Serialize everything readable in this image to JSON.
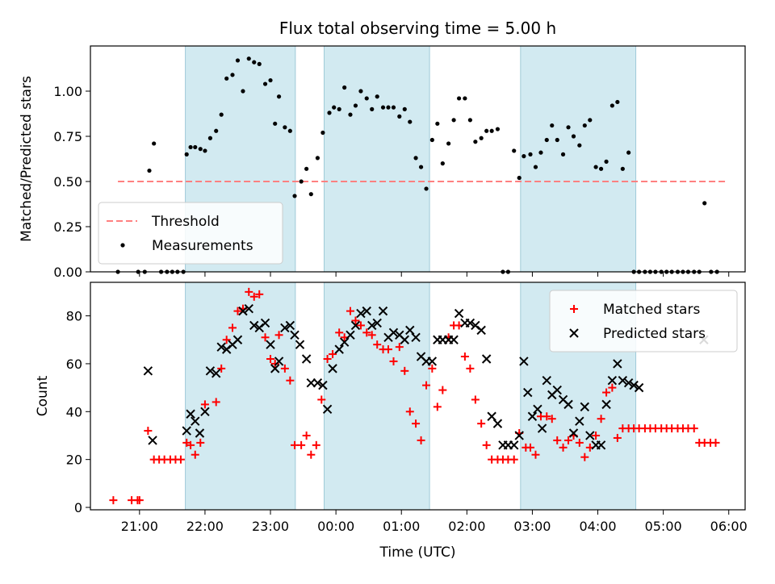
{
  "chart_data": [
    {
      "type": "scatter",
      "title": "Flux total observing time = 5.00 h",
      "ylabel": "Matched/Predicted stars",
      "xlabel": "",
      "x_unit": "hours UTC (continuous past midnight)",
      "xlim": [
        20.25,
        30.25
      ],
      "ylim": [
        0,
        1.25
      ],
      "yticks": [
        "0.00",
        "0.25",
        "0.50",
        "0.75",
        "1.00"
      ],
      "legend_position": "lower-left",
      "shaded_windows": [
        [
          21.7,
          23.38
        ],
        [
          23.82,
          25.43
        ],
        [
          26.82,
          28.58
        ]
      ],
      "shade_color": "#add8e6",
      "threshold": {
        "name": "Threshold",
        "value": 0.5,
        "x_range": [
          20.67,
          29.97
        ],
        "color": "#ff8080"
      },
      "series": [
        {
          "name": "Measurements",
          "marker": "dot",
          "color": "#000000",
          "x": [
            20.67,
            20.98,
            21.08,
            21.15,
            21.22,
            21.33,
            21.42,
            21.5,
            21.58,
            21.67,
            21.72,
            21.78,
            21.85,
            21.93,
            22.0,
            22.08,
            22.17,
            22.25,
            22.33,
            22.42,
            22.5,
            22.58,
            22.67,
            22.75,
            22.83,
            22.92,
            23.0,
            23.07,
            23.13,
            23.22,
            23.3,
            23.37,
            23.47,
            23.55,
            23.62,
            23.72,
            23.8,
            23.9,
            23.97,
            24.05,
            24.13,
            24.22,
            24.3,
            24.38,
            24.47,
            24.55,
            24.63,
            24.72,
            24.8,
            24.88,
            24.97,
            25.05,
            25.13,
            25.22,
            25.3,
            25.38,
            25.47,
            25.55,
            25.63,
            25.72,
            25.8,
            25.88,
            25.97,
            26.05,
            26.13,
            26.22,
            26.3,
            26.38,
            26.47,
            26.55,
            26.63,
            26.72,
            26.8,
            26.87,
            26.97,
            27.05,
            27.13,
            27.22,
            27.3,
            27.38,
            27.47,
            27.55,
            27.63,
            27.72,
            27.8,
            27.88,
            27.97,
            28.05,
            28.13,
            28.22,
            28.3,
            28.38,
            28.47,
            28.55,
            28.63,
            28.72,
            28.8,
            28.88,
            28.97,
            29.05,
            29.13,
            29.22,
            29.3,
            29.38,
            29.47,
            29.55,
            29.63,
            29.73,
            29.82
          ],
          "y": [
            0.0,
            0.0,
            0.0,
            0.56,
            0.71,
            0.0,
            0.0,
            0.0,
            0.0,
            0.0,
            0.65,
            0.69,
            0.69,
            0.68,
            0.67,
            0.74,
            0.78,
            0.87,
            1.07,
            1.09,
            1.17,
            1.0,
            1.18,
            1.16,
            1.15,
            1.04,
            1.06,
            0.82,
            0.97,
            0.8,
            0.78,
            0.42,
            0.5,
            0.57,
            0.43,
            0.63,
            0.77,
            0.88,
            0.91,
            0.9,
            1.02,
            0.87,
            0.92,
            1.0,
            0.96,
            0.9,
            0.97,
            0.91,
            0.91,
            0.91,
            0.86,
            0.9,
            0.83,
            0.63,
            0.58,
            0.46,
            0.73,
            0.82,
            0.6,
            0.71,
            0.84,
            0.96,
            0.96,
            0.84,
            0.72,
            0.74,
            0.78,
            0.78,
            0.79,
            0.0,
            0.0,
            0.67,
            0.52,
            0.64,
            0.65,
            0.58,
            0.66,
            0.73,
            0.81,
            0.73,
            0.65,
            0.8,
            0.75,
            0.7,
            0.81,
            0.84,
            0.58,
            0.57,
            0.61,
            0.92,
            0.94,
            0.57,
            0.66,
            0.0,
            0.0,
            0.0,
            0.0,
            0.0,
            0.0,
            0.0,
            0.0,
            0.0,
            0.0,
            0.0,
            0.0,
            0.0,
            0.38,
            0.0,
            0.0
          ]
        }
      ]
    },
    {
      "type": "scatter",
      "title": "",
      "ylabel": "Count",
      "xlabel": "Time (UTC)",
      "x_unit": "hours UTC (continuous past midnight)",
      "xlim": [
        20.25,
        30.25
      ],
      "ylim": [
        -1,
        94
      ],
      "yticks": [
        "0",
        "20",
        "40",
        "60",
        "80"
      ],
      "xticks": [
        "21:00",
        "22:00",
        "23:00",
        "00:00",
        "01:00",
        "02:00",
        "03:00",
        "04:00",
        "05:00",
        "06:00"
      ],
      "legend_position": "upper-right",
      "shaded_windows": [
        [
          21.7,
          23.38
        ],
        [
          23.82,
          25.43
        ],
        [
          26.82,
          28.58
        ]
      ],
      "shade_color": "#add8e6",
      "series": [
        {
          "name": "Matched stars",
          "marker": "plus",
          "color": "#ff0000",
          "x": [
            20.6,
            20.88,
            20.97,
            21.0,
            21.13,
            21.22,
            21.3,
            21.38,
            21.47,
            21.55,
            21.63,
            21.72,
            21.78,
            21.85,
            21.93,
            22.0,
            22.17,
            22.25,
            22.33,
            22.42,
            22.5,
            22.58,
            22.67,
            22.75,
            22.83,
            22.92,
            23.0,
            23.07,
            23.13,
            23.22,
            23.3,
            23.37,
            23.47,
            23.55,
            23.62,
            23.7,
            23.78,
            23.87,
            23.95,
            24.05,
            24.13,
            24.22,
            24.3,
            24.38,
            24.47,
            24.55,
            24.63,
            24.72,
            24.8,
            24.88,
            24.97,
            25.05,
            25.13,
            25.22,
            25.3,
            25.38,
            25.47,
            25.55,
            25.63,
            25.72,
            25.8,
            25.88,
            25.97,
            26.05,
            26.13,
            26.22,
            26.3,
            26.38,
            26.47,
            26.55,
            26.63,
            26.72,
            26.8,
            26.9,
            26.97,
            27.05,
            27.13,
            27.22,
            27.3,
            27.38,
            27.47,
            27.55,
            27.63,
            27.72,
            27.8,
            27.88,
            27.97,
            28.05,
            28.13,
            28.22,
            28.3,
            28.38,
            28.47,
            28.55,
            28.63,
            28.72,
            28.8,
            28.88,
            28.97,
            29.05,
            29.13,
            29.22,
            29.3,
            29.38,
            29.47,
            29.55,
            29.63,
            29.72,
            29.8
          ],
          "y": [
            3,
            3,
            3,
            3,
            32,
            20,
            20,
            20,
            20,
            20,
            20,
            27,
            26,
            22,
            27,
            43,
            44,
            58,
            70,
            75,
            82,
            83,
            90,
            88,
            89,
            71,
            62,
            60,
            72,
            58,
            53,
            26,
            26,
            30,
            22,
            26,
            45,
            62,
            64,
            73,
            71,
            82,
            78,
            76,
            73,
            72,
            68,
            66,
            66,
            61,
            67,
            57,
            40,
            35,
            28,
            51,
            58,
            42,
            49,
            71,
            76,
            76,
            63,
            58,
            45,
            35,
            26,
            20,
            20,
            20,
            20,
            20,
            31,
            25,
            25,
            22,
            38,
            38,
            37,
            28,
            25,
            28,
            30,
            27,
            21,
            25,
            30,
            37,
            48,
            50,
            29,
            33,
            33,
            33,
            33,
            33,
            33,
            33,
            33,
            33,
            33,
            33,
            33,
            33,
            33,
            27,
            27,
            27,
            27
          ]
        },
        {
          "name": "Predicted stars",
          "marker": "x",
          "color": "#000000",
          "x": [
            21.13,
            21.2,
            21.72,
            21.78,
            21.85,
            21.92,
            22.0,
            22.08,
            22.17,
            22.25,
            22.33,
            22.42,
            22.5,
            22.58,
            22.67,
            22.75,
            22.83,
            22.92,
            23.0,
            23.07,
            23.13,
            23.22,
            23.3,
            23.37,
            23.45,
            23.55,
            23.62,
            23.72,
            23.8,
            23.87,
            23.95,
            24.05,
            24.13,
            24.22,
            24.3,
            24.38,
            24.47,
            24.55,
            24.63,
            24.72,
            24.8,
            24.88,
            24.97,
            25.05,
            25.13,
            25.22,
            25.3,
            25.38,
            25.47,
            25.55,
            25.63,
            25.72,
            25.8,
            25.88,
            25.97,
            26.05,
            26.13,
            26.22,
            26.3,
            26.38,
            26.47,
            26.55,
            26.63,
            26.72,
            26.8,
            26.87,
            26.93,
            27.0,
            27.08,
            27.15,
            27.22,
            27.3,
            27.38,
            27.47,
            27.55,
            27.63,
            27.72,
            27.8,
            27.88,
            27.97,
            28.05,
            28.13,
            28.22,
            28.3,
            28.38,
            28.47,
            28.55,
            28.63,
            29.62
          ],
          "y": [
            57,
            28,
            32,
            39,
            36,
            31,
            40,
            57,
            56,
            67,
            66,
            68,
            70,
            82,
            83,
            76,
            75,
            77,
            68,
            58,
            61,
            75,
            76,
            72,
            68,
            62,
            52,
            52,
            51,
            41,
            58,
            66,
            69,
            72,
            76,
            81,
            82,
            76,
            77,
            82,
            71,
            73,
            72,
            70,
            74,
            71,
            63,
            61,
            61,
            70,
            70,
            70,
            70,
            81,
            77,
            77,
            76,
            74,
            62,
            38,
            35,
            26,
            26,
            26,
            30,
            61,
            48,
            38,
            41,
            33,
            53,
            47,
            49,
            45,
            43,
            31,
            36,
            42,
            30,
            26,
            26,
            43,
            53,
            60,
            53,
            52,
            51,
            50,
            70
          ]
        }
      ]
    }
  ]
}
